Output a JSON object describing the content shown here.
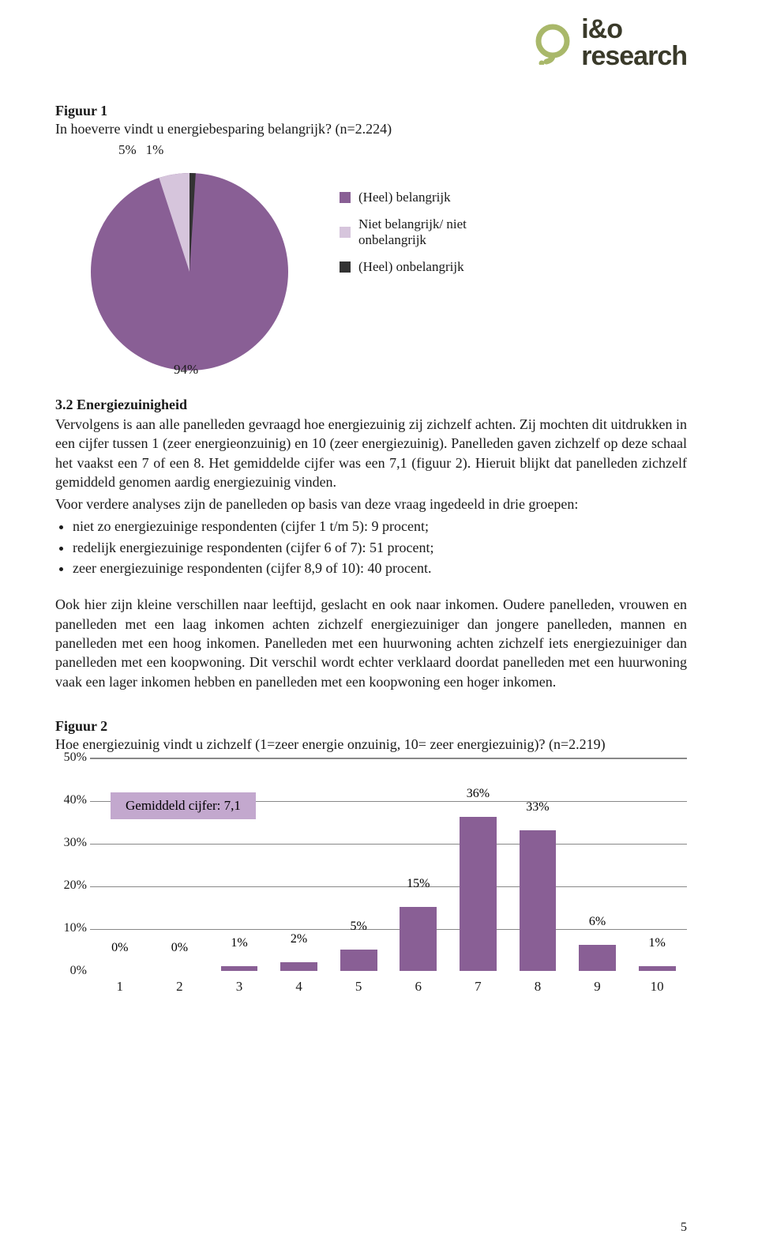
{
  "logo": {
    "top": "i&o",
    "bottom": "research",
    "mark_color": "#a9b86a",
    "text_color": "#3a3a2a"
  },
  "figure1": {
    "title": "Figuur 1",
    "caption": "In hoeverre vindt u energiebesparing belangrijk? (n=2.224)",
    "pie": {
      "slices": [
        {
          "label": "(Heel) belangrijk",
          "value": 94,
          "color": "#895f95"
        },
        {
          "label": "Niet belangrijk/ niet onbelangrijk",
          "value": 5,
          "color": "#d6c5dc"
        },
        {
          "label": "(Heel) onbelangrijk",
          "value": 1,
          "color": "#333333"
        }
      ],
      "top_labels": [
        "5%",
        "1%"
      ],
      "bottom_label": "94%"
    }
  },
  "section": {
    "title": "3.2 Energiezuinigheid",
    "para1": "Vervolgens is aan alle panelleden gevraagd hoe energiezuinig zij zichzelf achten. Zij mochten dit uitdrukken in een cijfer tussen 1 (zeer energieonzuinig) en 10 (zeer energiezuinig). Panelleden gaven zichzelf op deze schaal het vaakst een 7 of een 8. Het gemiddelde cijfer was een 7,1 (figuur 2). Hieruit blijkt dat panelleden zichzelf gemiddeld genomen aardig energiezuinig vinden.",
    "lead": "Voor verdere analyses zijn de panelleden op basis van deze vraag ingedeeld in drie groepen:",
    "bullets": [
      "niet zo energiezuinige respondenten (cijfer 1 t/m 5): 9 procent;",
      "redelijk energiezuinige respondenten (cijfer 6 of 7): 51 procent;",
      "zeer energiezuinige respondenten (cijfer 8,9 of 10): 40 procent."
    ],
    "para2": "Ook hier zijn kleine verschillen naar leeftijd, geslacht en ook naar inkomen. Oudere panelleden, vrouwen en panelleden met een laag inkomen achten zichzelf energiezuiniger dan jongere panelleden, mannen en panelleden met een hoog inkomen. Panelleden met een huurwoning achten zichzelf iets energiezuiniger dan panelleden met een koopwoning. Dit verschil wordt echter verklaard doordat panelleden met een huurwoning vaak een lager inkomen hebben en panelleden met een koopwoning een hoger inkomen."
  },
  "figure2": {
    "title": "Figuur 2",
    "caption": "Hoe energiezuinig vindt u zichzelf (1=zeer energie onzuinig, 10= zeer energiezuinig)? (n=2.219)",
    "type": "bar",
    "ylim": [
      0,
      50
    ],
    "ytick_step": 10,
    "y_labels": [
      "0%",
      "10%",
      "20%",
      "30%",
      "40%",
      "50%"
    ],
    "categories": [
      "1",
      "2",
      "3",
      "4",
      "5",
      "6",
      "7",
      "8",
      "9",
      "10"
    ],
    "values": [
      0,
      0,
      1,
      2,
      5,
      15,
      36,
      33,
      6,
      1
    ],
    "labels": [
      "0%",
      "0%",
      "1%",
      "2%",
      "5%",
      "15%",
      "36%",
      "33%",
      "6%",
      "1%"
    ],
    "bar_color": "#895f95",
    "grid_color": "#888888",
    "avg_box": {
      "text": "Gemiddeld cijfer: 7,1",
      "bg": "#c3a8ce"
    }
  },
  "page_number": "5"
}
